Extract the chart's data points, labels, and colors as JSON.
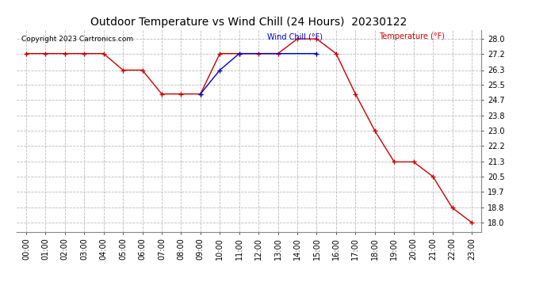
{
  "title": "Outdoor Temperature vs Wind Chill (24 Hours)  20230122",
  "copyright_text": "Copyright 2023 Cartronics.com",
  "legend_wind_chill": "Wind Chill (°F)",
  "legend_temperature": "Temperature (°F)",
  "hours": [
    "00:00",
    "01:00",
    "02:00",
    "03:00",
    "04:00",
    "05:00",
    "06:00",
    "07:00",
    "08:00",
    "09:00",
    "10:00",
    "11:00",
    "12:00",
    "13:00",
    "14:00",
    "15:00",
    "16:00",
    "17:00",
    "18:00",
    "19:00",
    "20:00",
    "21:00",
    "22:00",
    "23:00"
  ],
  "temperature": [
    27.2,
    27.2,
    27.2,
    27.2,
    27.2,
    26.3,
    26.3,
    25.0,
    25.0,
    25.0,
    27.2,
    27.2,
    27.2,
    27.2,
    28.0,
    28.0,
    27.2,
    25.0,
    23.0,
    21.3,
    21.3,
    20.5,
    18.8,
    18.0
  ],
  "wind_chill": [
    null,
    null,
    null,
    null,
    null,
    null,
    null,
    null,
    null,
    25.0,
    26.3,
    27.2,
    null,
    null,
    null,
    27.2,
    null,
    null,
    null,
    null,
    null,
    null,
    null,
    null
  ],
  "ylim_min": 17.5,
  "ylim_max": 28.5,
  "yticks": [
    18.0,
    18.8,
    19.7,
    20.5,
    21.3,
    22.2,
    23.0,
    23.8,
    24.7,
    25.5,
    26.3,
    27.2,
    28.0
  ],
  "temp_color": "#cc0000",
  "wind_chill_color": "#0000cc",
  "background_color": "#ffffff",
  "grid_color": "#bbbbbb",
  "title_fontsize": 10,
  "tick_fontsize": 7,
  "copyright_fontsize": 6.5,
  "legend_fontsize": 7
}
